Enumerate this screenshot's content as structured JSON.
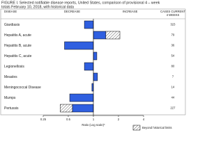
{
  "chart_data": {
    "type": "bar",
    "title": [
      "FIGURE I. Selected notifiable disease reports, United States, comparison of provisional 4 – week",
      "totals February 10, 2018, with historical data"
    ],
    "columns": [
      "DISEASE",
      "DECREASE",
      "INCREASE"
    ],
    "cases_header": [
      "CASES CURRENT",
      "4 WEEKS"
    ],
    "categories": [
      "Giardiasis",
      "Hepatitis A, acute",
      "Hepatitis B, acute",
      "Hepatitis C, acute",
      "Legionellosis",
      "Measles",
      "Meningococcal Disease",
      "Mumps",
      "Pertussis"
    ],
    "values": [
      0.78,
      2.08,
      0.45,
      1.1,
      0.78,
      1.12,
      0.96,
      0.52,
      0.4
    ],
    "beyond_limit_from": [
      null,
      1.41,
      null,
      null,
      null,
      null,
      null,
      null,
      0.56
    ],
    "cases": [
      323,
      79,
      36,
      54,
      80,
      7,
      14,
      44,
      227
    ],
    "color": "#2f5fe0",
    "log_scale": true,
    "xlim": [
      0.25,
      4
    ],
    "xticks": [
      0.25,
      0.5,
      1,
      2,
      4
    ],
    "xlabel": "Ratio (Log scale)*",
    "legend": "Beyond historical limits"
  }
}
